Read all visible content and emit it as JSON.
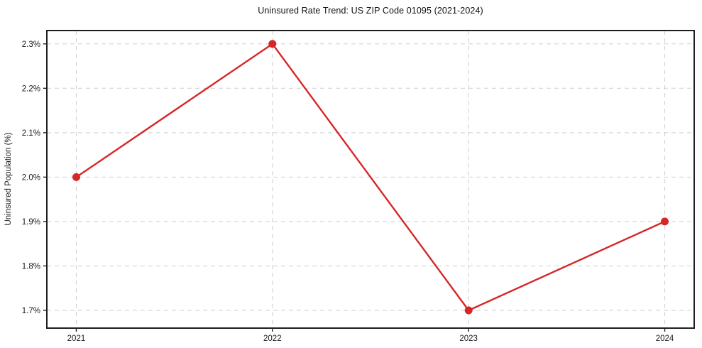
{
  "page": {
    "background_color": "#ffffff"
  },
  "chart_data": {
    "type": "line",
    "title": "Uninsured Rate Trend: US ZIP Code 01095 (2021-2024)",
    "xlabel": "",
    "ylabel": "Uninsured Population (%)",
    "x": [
      2021,
      2022,
      2023,
      2024
    ],
    "x_tick_labels": [
      "2021",
      "2022",
      "2023",
      "2024"
    ],
    "values": [
      2.0,
      2.3,
      1.7,
      1.9
    ],
    "y_ticks": [
      1.7,
      1.8,
      1.9,
      2.0,
      2.1,
      2.2,
      2.3
    ],
    "y_tick_labels": [
      "1.7%",
      "1.8%",
      "1.9%",
      "2.0%",
      "2.1%",
      "2.2%",
      "2.3%"
    ],
    "xlim": [
      2020.85,
      2024.15
    ],
    "ylim": [
      1.66,
      2.33
    ],
    "grid": true,
    "grid_style": "dashed",
    "legend_position": "none",
    "line_color": "#d62728",
    "marker": "circle",
    "marker_color": "#d62728",
    "grid_color": "#cfcfcf",
    "spine_color": "#1f1f1f",
    "text_color": "#1a1a1a"
  }
}
